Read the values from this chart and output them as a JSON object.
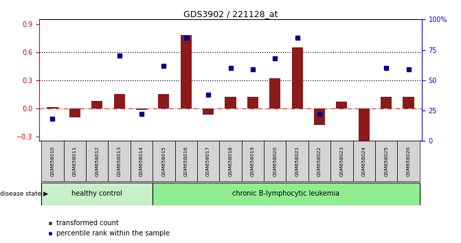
{
  "title": "GDS3902 / 221128_at",
  "samples": [
    "GSM658010",
    "GSM658011",
    "GSM658012",
    "GSM658013",
    "GSM658014",
    "GSM658015",
    "GSM658016",
    "GSM658017",
    "GSM658018",
    "GSM658019",
    "GSM658020",
    "GSM658021",
    "GSM658022",
    "GSM658023",
    "GSM658024",
    "GSM658025",
    "GSM658026"
  ],
  "red_values": [
    0.01,
    -0.1,
    0.08,
    0.15,
    -0.02,
    0.15,
    0.78,
    -0.07,
    0.12,
    0.12,
    0.32,
    0.65,
    -0.18,
    0.07,
    -0.38,
    0.12,
    0.12
  ],
  "blue_values": [
    0.18,
    null,
    null,
    0.7,
    0.22,
    0.62,
    0.85,
    0.38,
    0.6,
    0.59,
    0.68,
    0.85,
    0.22,
    null,
    null,
    0.6,
    0.59
  ],
  "healthy_count": 5,
  "disease_label": "disease state",
  "healthy_label": "healthy control",
  "leukemia_label": "chronic B-lymphocytic leukemia",
  "legend_red": "transformed count",
  "legend_blue": "percentile rank within the sample",
  "ylim_left": [
    -0.35,
    0.95
  ],
  "ylim_right": [
    0,
    100
  ],
  "yticks_left": [
    -0.3,
    0.0,
    0.3,
    0.6,
    0.9
  ],
  "yticks_right": [
    0,
    25,
    50,
    75,
    100
  ],
  "hline_dotted": [
    0.3,
    0.6
  ],
  "hline_dashed": 0.0,
  "bar_color": "#8B1A1A",
  "dot_color": "#00008B",
  "healthy_bg": "#c8f0c8",
  "leukemia_bg": "#90ee90",
  "sample_bg": "#d4d4d4",
  "right_axis_color": "#0000cc",
  "left_axis_color": "#cc0000"
}
